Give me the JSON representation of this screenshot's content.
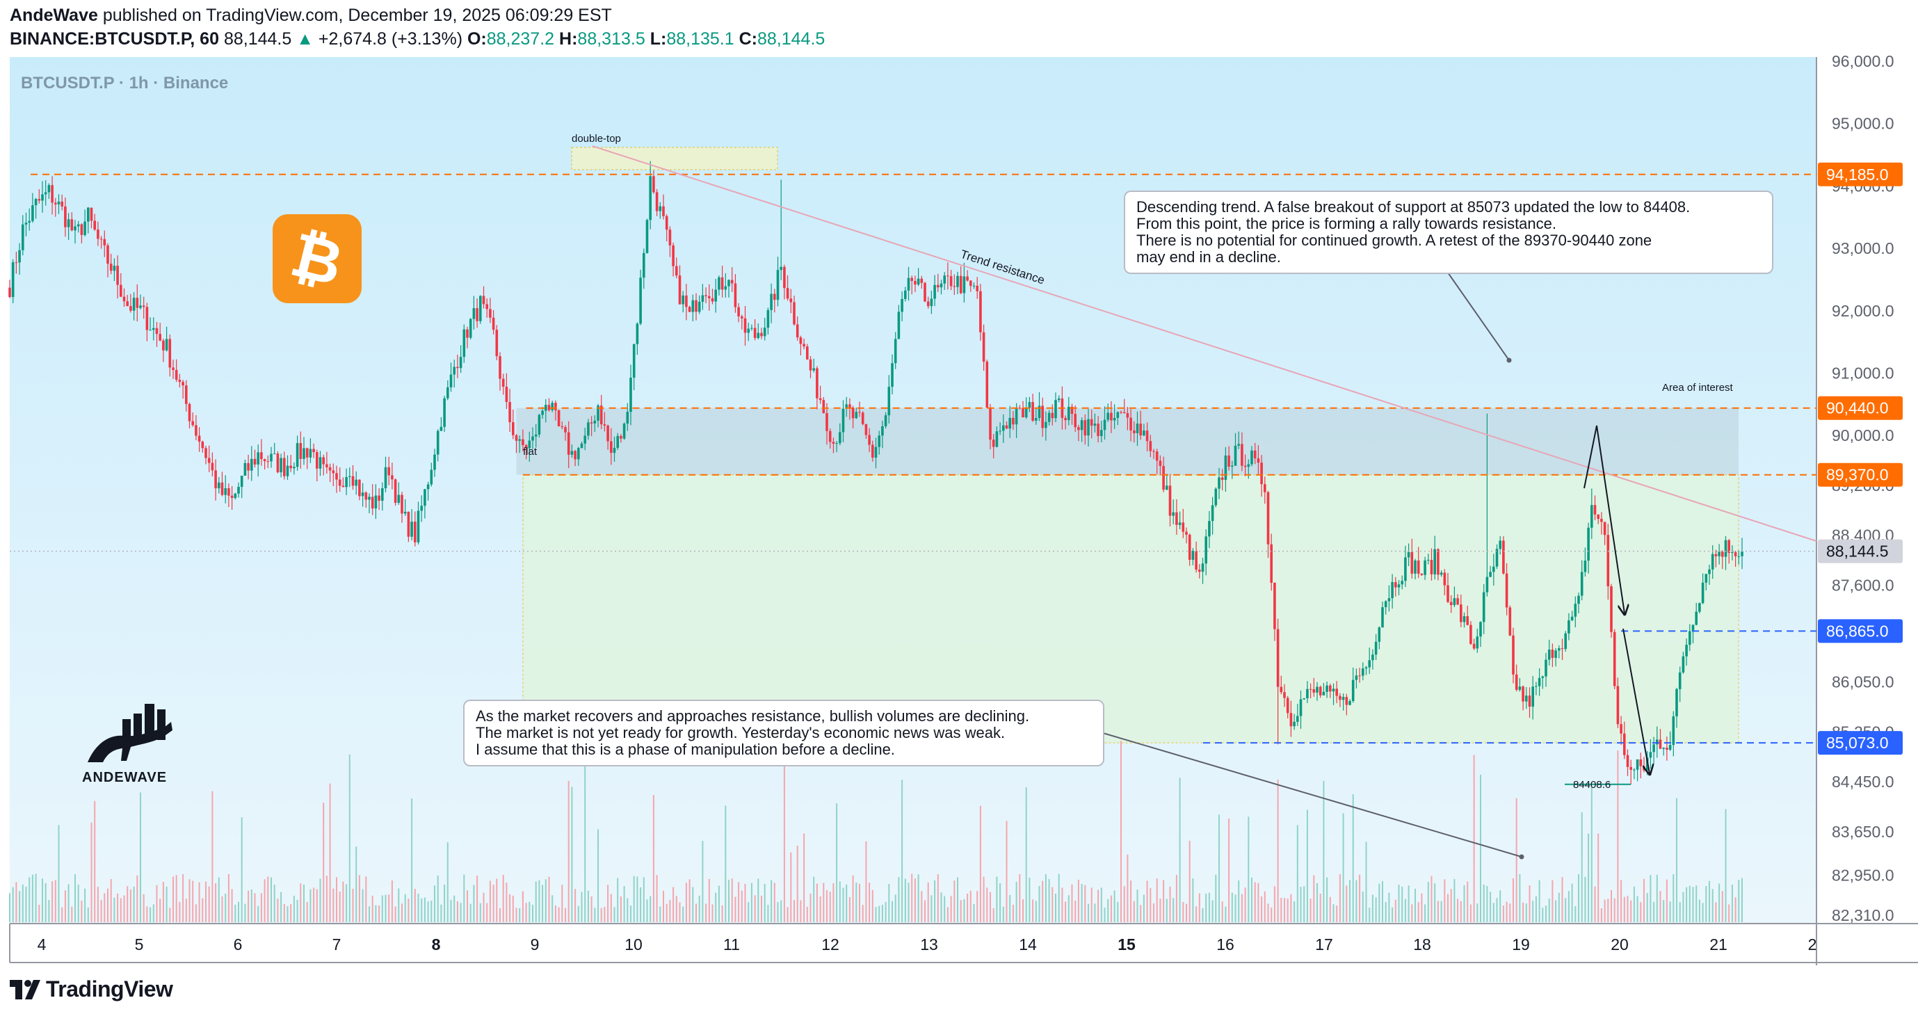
{
  "header": {
    "author": "AndeWave",
    "published": "published on TradingView.com, December 19, 2025 06:09:29 EST",
    "symbol": "BINANCE:BTCUSDT.P, 60",
    "last": "88,144.5",
    "change_arrow": "▲",
    "change": "+2,674.8 (+3.13%)",
    "o_label": "O:",
    "o": "88,237.2",
    "h_label": "H:",
    "h": "88,313.5",
    "l_label": "L:",
    "l": "88,135.1",
    "c_label": "C:",
    "c": "88,144.5"
  },
  "watermark": "BTCUSDT.P · 1h · Binance",
  "brand": {
    "logo_text": "ANDEWAVE",
    "btc_symbol": "₿"
  },
  "footer": {
    "logo_text": "TradingView"
  },
  "colors": {
    "up": "#089981",
    "down": "#f23645",
    "bg_top": "#c9ecfb",
    "bg_bottom": "#eaf6fc",
    "level_orange": "#ff6d00",
    "level_blue": "#2962ff",
    "btc_orange": "#f7931a"
  },
  "notes": {
    "top": "Descending trend. A false breakout of support at 85073 updated the low to 84408.\nFrom this point, the price is forming a rally towards resistance.\nThere is no potential for continued growth. A retest of the 89370-90440 zone\nmay end in a decline.",
    "bottom": "As the market recovers and approaches resistance, bullish volumes are declining.\nThe market is not yet ready for growth. Yesterday's economic news was weak.\nI assume that this is a phase of manipulation before a decline."
  },
  "chart_data": {
    "type": "candlestick",
    "symbol": "BTCUSDT.P",
    "timeframe": "1h",
    "exchange": "Binance",
    "x_ticks": [
      "4",
      "5",
      "6",
      "7",
      "8",
      "9",
      "10",
      "11",
      "12",
      "13",
      "14",
      "15",
      "16",
      "17",
      "18",
      "19",
      "20",
      "21",
      "2"
    ],
    "bold_x_ticks": [
      "8",
      "15"
    ],
    "y_ticks": [
      "96,000.0",
      "95,000.0",
      "94,000.0",
      "93,000.0",
      "92,000.0",
      "91,000.0",
      "90,000.0",
      "89,200.0",
      "88,400.0",
      "87,600.0",
      "86,050.0",
      "85,250.0",
      "84,450.0",
      "83,650.0",
      "82,950.0",
      "82,310.0"
    ],
    "price_levels": [
      {
        "price": 94185.0,
        "label": "94,185.0",
        "color": "#ff6d00"
      },
      {
        "price": 90440.0,
        "label": "90,440.0",
        "color": "#ff6d00"
      },
      {
        "price": 89370.0,
        "label": "89,370.0",
        "color": "#ff6d00"
      },
      {
        "price": 88144.5,
        "label": "88,144.5",
        "color": "#5d606b"
      },
      {
        "price": 86865.0,
        "label": "86,865.0",
        "color": "#2962ff"
      },
      {
        "price": 85073.0,
        "label": "85,073.0",
        "color": "#2962ff"
      }
    ],
    "annotations": {
      "double_top": "double-top",
      "flat": "flat",
      "trend": "Trend resistance",
      "area": "Area of interest",
      "low": "84408.6"
    },
    "path": [
      [
        0,
        92400
      ],
      [
        4,
        93300
      ],
      [
        8,
        93700
      ],
      [
        12,
        93900
      ],
      [
        16,
        93600
      ],
      [
        20,
        93200
      ],
      [
        24,
        93500
      ],
      [
        28,
        93000
      ],
      [
        32,
        92600
      ],
      [
        36,
        92100
      ],
      [
        40,
        92000
      ],
      [
        44,
        91700
      ],
      [
        48,
        91400
      ],
      [
        52,
        90800
      ],
      [
        56,
        90200
      ],
      [
        60,
        89700
      ],
      [
        64,
        89100
      ],
      [
        68,
        88950
      ],
      [
        72,
        89400
      ],
      [
        76,
        89700
      ],
      [
        80,
        89600
      ],
      [
        84,
        89500
      ],
      [
        88,
        89700
      ],
      [
        92,
        89800
      ],
      [
        96,
        89400
      ],
      [
        100,
        89200
      ],
      [
        104,
        89500
      ],
      [
        108,
        89000
      ],
      [
        112,
        88900
      ],
      [
        116,
        89500
      ],
      [
        120,
        88700
      ],
      [
        124,
        88400
      ],
      [
        128,
        89300
      ],
      [
        132,
        90300
      ],
      [
        136,
        91100
      ],
      [
        140,
        91700
      ],
      [
        144,
        92100
      ],
      [
        148,
        91600
      ],
      [
        152,
        90400
      ],
      [
        156,
        89800
      ],
      [
        160,
        89900
      ],
      [
        164,
        90600
      ],
      [
        168,
        90100
      ],
      [
        172,
        89700
      ],
      [
        176,
        89900
      ],
      [
        180,
        90500
      ],
      [
        184,
        89700
      ],
      [
        188,
        90100
      ],
      [
        192,
        91900
      ],
      [
        196,
        94100
      ],
      [
        200,
        93400
      ],
      [
        204,
        92400
      ],
      [
        208,
        91900
      ],
      [
        212,
        92400
      ],
      [
        216,
        92300
      ],
      [
        220,
        92600
      ],
      [
        224,
        91700
      ],
      [
        228,
        91600
      ],
      [
        232,
        91900
      ],
      [
        236,
        92700
      ],
      [
        240,
        91900
      ],
      [
        244,
        91200
      ],
      [
        248,
        90600
      ],
      [
        252,
        89900
      ],
      [
        256,
        90400
      ],
      [
        260,
        90200
      ],
      [
        264,
        89700
      ],
      [
        268,
        90300
      ],
      [
        272,
        91900
      ],
      [
        276,
        92500
      ],
      [
        280,
        92200
      ],
      [
        284,
        92300
      ],
      [
        288,
        92500
      ],
      [
        292,
        92400
      ],
      [
        296,
        92300
      ],
      [
        300,
        89800
      ],
      [
        304,
        90200
      ],
      [
        308,
        90300
      ],
      [
        312,
        90400
      ],
      [
        316,
        90300
      ],
      [
        320,
        90500
      ],
      [
        324,
        90300
      ],
      [
        328,
        90200
      ],
      [
        332,
        90100
      ],
      [
        336,
        90200
      ],
      [
        340,
        90300
      ],
      [
        344,
        90200
      ],
      [
        348,
        90000
      ],
      [
        352,
        89400
      ],
      [
        356,
        88700
      ],
      [
        360,
        88300
      ],
      [
        364,
        87700
      ],
      [
        368,
        88800
      ],
      [
        372,
        89600
      ],
      [
        376,
        89700
      ],
      [
        380,
        89600
      ],
      [
        384,
        89200
      ],
      [
        388,
        86100
      ],
      [
        392,
        85500
      ],
      [
        396,
        85800
      ],
      [
        400,
        85900
      ],
      [
        404,
        85800
      ],
      [
        408,
        85700
      ],
      [
        412,
        86100
      ],
      [
        416,
        86400
      ],
      [
        420,
        87300
      ],
      [
        424,
        87700
      ],
      [
        428,
        88000
      ],
      [
        432,
        87800
      ],
      [
        436,
        88000
      ],
      [
        440,
        87500
      ],
      [
        444,
        87100
      ],
      [
        448,
        86600
      ],
      [
        452,
        87600
      ],
      [
        456,
        88200
      ],
      [
        460,
        86100
      ],
      [
        464,
        85700
      ],
      [
        468,
        86000
      ],
      [
        472,
        86600
      ],
      [
        476,
        86800
      ],
      [
        480,
        87300
      ],
      [
        484,
        88900
      ],
      [
        488,
        88400
      ],
      [
        492,
        85300
      ],
      [
        496,
        84600
      ],
      [
        500,
        84700
      ],
      [
        504,
        85100
      ],
      [
        508,
        85100
      ],
      [
        512,
        86500
      ],
      [
        516,
        87300
      ],
      [
        520,
        88000
      ],
      [
        524,
        88200
      ],
      [
        528,
        88200
      ],
      [
        530,
        88144.5
      ]
    ],
    "x_range": [
      0,
      590
    ],
    "y_range": [
      82310,
      96000
    ]
  }
}
